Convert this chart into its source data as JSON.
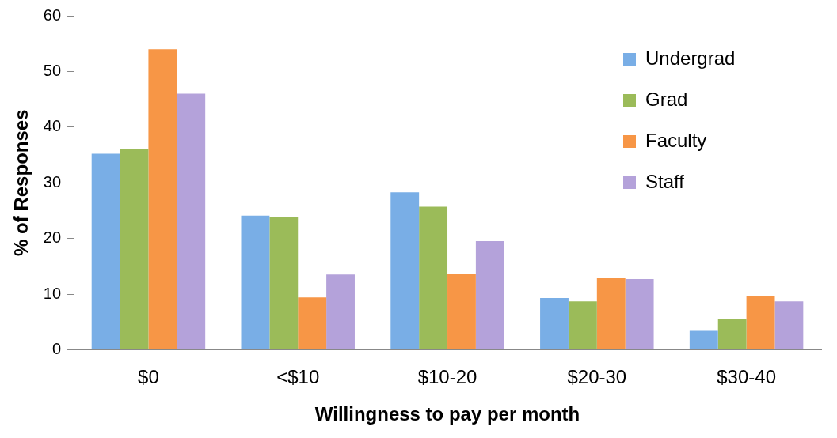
{
  "chart_data": {
    "type": "bar",
    "xlabel": "Willingness to pay per month",
    "ylabel": "% of Responses",
    "categories": [
      "$0",
      "<$10",
      "$10-20",
      "$20-30",
      "$30-40"
    ],
    "series": [
      {
        "name": "Undergrad",
        "color": "#79aee6",
        "values": [
          35.2,
          24.1,
          28.3,
          9.3,
          3.4
        ]
      },
      {
        "name": "Grad",
        "color": "#9bbb59",
        "values": [
          36,
          23.8,
          25.7,
          8.7,
          5.5
        ]
      },
      {
        "name": "Faculty",
        "color": "#f79646",
        "values": [
          54,
          9.4,
          13.6,
          13,
          9.7
        ]
      },
      {
        "name": "Staff",
        "color": "#b4a2da",
        "values": [
          46,
          13.5,
          19.5,
          12.7,
          8.7
        ]
      }
    ],
    "ylim": [
      0,
      60
    ],
    "yticks": [
      0,
      10,
      20,
      30,
      40,
      50,
      60
    ],
    "grid": false,
    "legend": "top right"
  }
}
